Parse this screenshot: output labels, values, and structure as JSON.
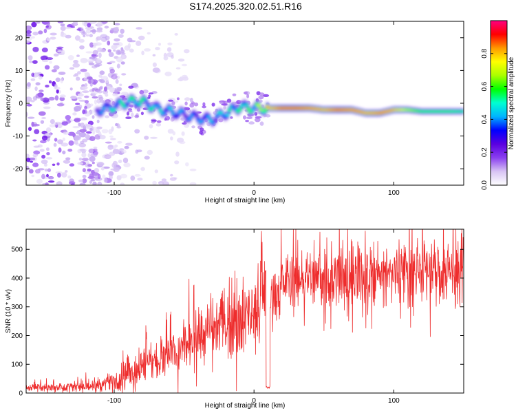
{
  "title": "S174.2025.320.02.51.R16",
  "chart_data": [
    {
      "type": "heatmap",
      "name": "spectrogram",
      "xlabel": "Height of straight line (km)",
      "ylabel": "Frequency (Hz)",
      "xlim": [
        -163,
        150
      ],
      "ylim": [
        -25,
        25
      ],
      "xticks": [
        -100,
        0,
        100
      ],
      "yticks": [
        -20,
        -10,
        0,
        10,
        20
      ],
      "colorbar": {
        "label": "Normalized spectral amplitude",
        "range": [
          0,
          1
        ],
        "ticks": [
          0.0,
          0.2,
          0.4,
          0.6,
          0.8
        ],
        "tick_labels": [
          "0.0",
          "0.2",
          "0.4",
          "0.6",
          "0.8"
        ],
        "colormap": [
          "#ffffff",
          "#d8c4f4",
          "#8a3ff0",
          "#5a00e0",
          "#0000ff",
          "#00b4ff",
          "#00ffd2",
          "#00ff00",
          "#aaff00",
          "#ffff00",
          "#ff9900",
          "#ff0000",
          "#ff0080"
        ]
      },
      "ridge": {
        "x": [
          -110,
          -100,
          -90,
          -80,
          -70,
          -60,
          -50,
          -40,
          -30,
          -20,
          -10,
          0,
          10,
          20,
          30,
          40,
          50,
          60,
          70,
          80,
          90,
          100,
          110,
          120,
          130,
          140,
          150
        ],
        "y": [
          -2,
          -1,
          0.5,
          0.5,
          -1.5,
          -2.5,
          -3.5,
          -4.5,
          -5,
          -3,
          -1,
          -1.5,
          -1.5,
          -1.5,
          -1.5,
          -1.5,
          -2,
          -2,
          -2,
          -3,
          -3,
          -2,
          -2,
          -2.5,
          -2.5,
          -2.5,
          -2.5
        ],
        "amplitude": [
          0.4,
          0.5,
          0.55,
          0.55,
          0.5,
          0.45,
          0.4,
          0.4,
          0.45,
          0.5,
          0.55,
          0.6,
          0.8,
          0.95,
          0.95,
          0.9,
          0.85,
          0.95,
          0.9,
          0.85,
          0.9,
          0.85,
          0.7,
          0.6,
          0.6,
          0.6,
          0.55
        ]
      }
    },
    {
      "type": "line",
      "name": "snr",
      "xlabel": "Height of straight line (km)",
      "ylabel": "SNR (10 * v/v)",
      "xlim": [
        -163,
        150
      ],
      "ylim": [
        0,
        570
      ],
      "xticks": [
        -100,
        0,
        100
      ],
      "yticks": [
        0,
        100,
        200,
        300,
        400,
        500
      ],
      "color": "#ee2c2c",
      "trend": {
        "x": [
          -163,
          -130,
          -110,
          -100,
          -90,
          -80,
          -70,
          -60,
          -50,
          -40,
          -30,
          -20,
          -10,
          0,
          10,
          20,
          30,
          40,
          50,
          60,
          70,
          80,
          90,
          100,
          110,
          120,
          130,
          140,
          150
        ],
        "y": [
          20,
          20,
          25,
          45,
          70,
          90,
          110,
          130,
          160,
          190,
          220,
          250,
          260,
          280,
          330,
          390,
          405,
          405,
          400,
          400,
          395,
          395,
          405,
          410,
          420,
          430,
          425,
          430,
          430
        ]
      },
      "noise_amplitude": {
        "x": [
          -163,
          -110,
          -90,
          -60,
          -20,
          0,
          20,
          60,
          100,
          150
        ],
        "y": [
          6,
          10,
          30,
          45,
          60,
          70,
          50,
          55,
          60,
          60
        ]
      },
      "dips": [
        {
          "x": 10,
          "y": 15
        }
      ]
    }
  ]
}
